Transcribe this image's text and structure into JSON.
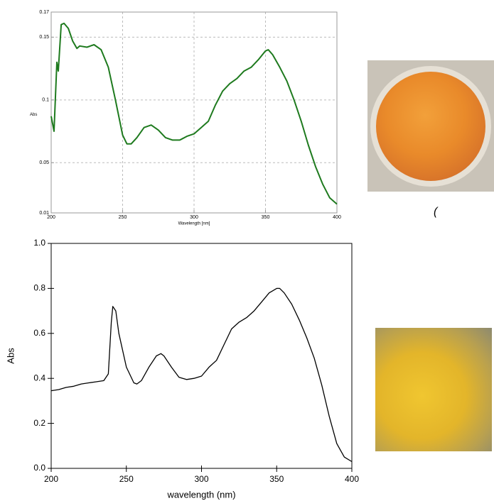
{
  "chart_data": [
    {
      "type": "line",
      "ylabel": "Abs",
      "xlabel": "Wavelength [nm]",
      "color": "#1e7a1e",
      "grid": true,
      "xlim": [
        200,
        400
      ],
      "xticks": [
        200,
        250,
        300,
        350,
        400
      ],
      "ylim": [
        0.01,
        0.17
      ],
      "yticks": [
        0.01,
        0.05,
        0.1,
        0.15,
        0.17
      ],
      "x": [
        200,
        202,
        204,
        205,
        207,
        209,
        212,
        215,
        218,
        220,
        225,
        230,
        235,
        240,
        245,
        250,
        253,
        256,
        260,
        265,
        270,
        275,
        280,
        285,
        290,
        295,
        300,
        305,
        310,
        315,
        320,
        325,
        330,
        335,
        340,
        345,
        350,
        352,
        355,
        360,
        365,
        370,
        375,
        380,
        385,
        390,
        395,
        400
      ],
      "values": [
        0.087,
        0.075,
        0.13,
        0.123,
        0.16,
        0.161,
        0.157,
        0.147,
        0.141,
        0.143,
        0.142,
        0.144,
        0.14,
        0.126,
        0.1,
        0.072,
        0.065,
        0.065,
        0.07,
        0.078,
        0.08,
        0.076,
        0.07,
        0.068,
        0.068,
        0.071,
        0.073,
        0.078,
        0.083,
        0.096,
        0.107,
        0.113,
        0.117,
        0.123,
        0.126,
        0.132,
        0.139,
        0.14,
        0.136,
        0.126,
        0.115,
        0.1,
        0.083,
        0.064,
        0.047,
        0.033,
        0.022,
        0.017
      ]
    },
    {
      "type": "line",
      "ylabel": "Abs",
      "xlabel": "wavelength (nm)",
      "color": "#000000",
      "grid": false,
      "xlim": [
        200,
        400
      ],
      "xticks": [
        200,
        250,
        300,
        350,
        400
      ],
      "ylim": [
        0,
        1
      ],
      "yticks": [
        {
          "value": 0,
          "label": "0.0"
        },
        0.2,
        0.4,
        0.6,
        0.8,
        {
          "value": 1,
          "label": "1.0"
        }
      ],
      "x": [
        200,
        205,
        210,
        215,
        220,
        225,
        230,
        235,
        238,
        240,
        241,
        243,
        245,
        250,
        255,
        257,
        260,
        265,
        270,
        273,
        275,
        280,
        285,
        290,
        295,
        300,
        305,
        310,
        315,
        320,
        325,
        330,
        335,
        340,
        345,
        350,
        352,
        355,
        360,
        365,
        370,
        375,
        380,
        385,
        390,
        395,
        400
      ],
      "values": [
        0.345,
        0.35,
        0.36,
        0.365,
        0.375,
        0.38,
        0.385,
        0.39,
        0.42,
        0.65,
        0.72,
        0.7,
        0.6,
        0.45,
        0.38,
        0.375,
        0.39,
        0.45,
        0.5,
        0.51,
        0.5,
        0.45,
        0.405,
        0.395,
        0.4,
        0.41,
        0.45,
        0.48,
        0.55,
        0.62,
        0.65,
        0.67,
        0.7,
        0.74,
        0.78,
        0.8,
        0.8,
        0.78,
        0.73,
        0.66,
        0.58,
        0.49,
        0.37,
        0.23,
        0.11,
        0.05,
        0.03
      ]
    }
  ],
  "annotation": "("
}
